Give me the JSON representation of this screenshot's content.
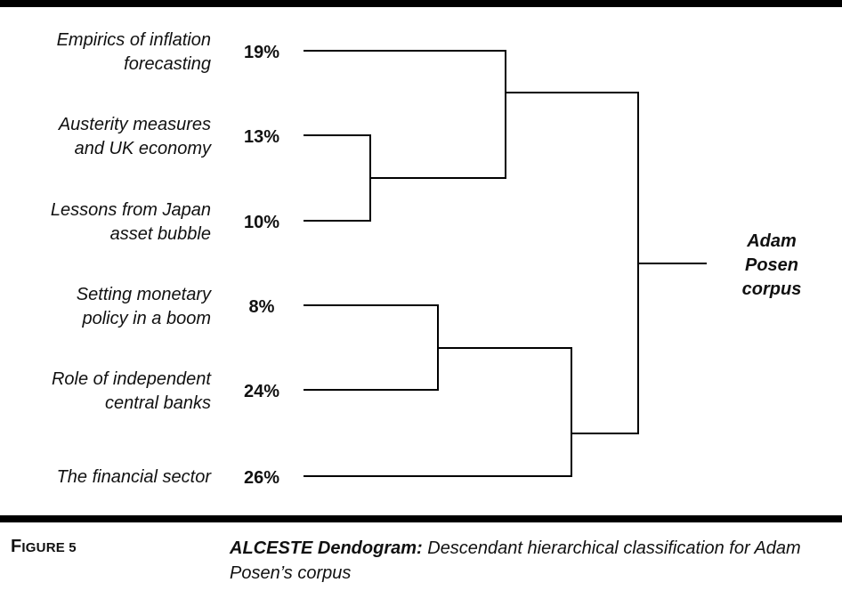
{
  "clusters": [
    {
      "label_lines": [
        "Empirics of inflation",
        "forecasting"
      ],
      "percent": "19%"
    },
    {
      "label_lines": [
        "Austerity measures",
        "and UK economy"
      ],
      "percent": "13%"
    },
    {
      "label_lines": [
        "Lessons from Japan",
        "asset bubble"
      ],
      "percent": "10%"
    },
    {
      "label_lines": [
        "Setting monetary",
        "policy in a boom"
      ],
      "percent": "8%"
    },
    {
      "label_lines": [
        "Role of independent",
        "central banks"
      ],
      "percent": "24%"
    },
    {
      "label_lines": [
        "The financial sector"
      ],
      "percent": "26%"
    }
  ],
  "root_label_lines": [
    "Adam",
    "Posen",
    "corpus"
  ],
  "caption": {
    "figure_label": "Figure 5",
    "title": "ALCESTE Dendogram:",
    "description": " Descendant hierarchical classification for Adam Posen’s corpus"
  },
  "colors": {
    "line": "#000000",
    "text": "#111111",
    "rule": "#000000"
  }
}
